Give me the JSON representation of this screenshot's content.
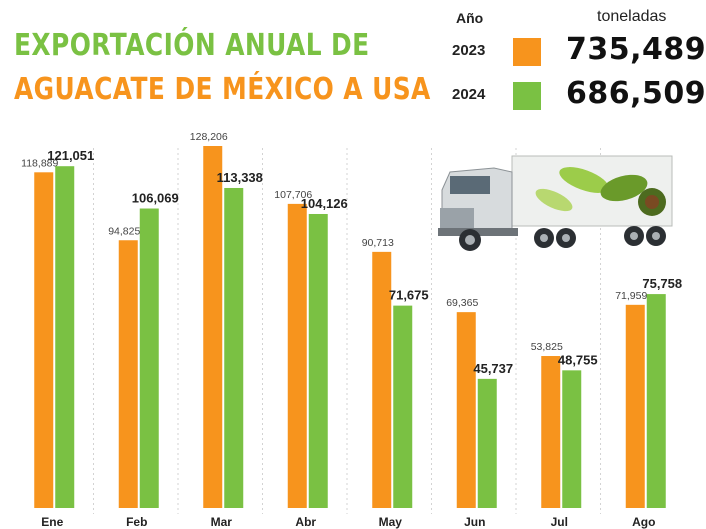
{
  "header": {
    "title_line1": "EXPORTACIÓN ANUAL DE",
    "title_line2": "AGUACATE DE MÉXICO A USA"
  },
  "legend": {
    "year_header": "Año",
    "units_header": "toneladas",
    "items": [
      {
        "year": "2023",
        "total": "735,489",
        "color": "#f7941d"
      },
      {
        "year": "2024",
        "total": "686,509",
        "color": "#7ac143"
      }
    ]
  },
  "chart_data": {
    "type": "bar",
    "title": "EXPORTACIÓN ANUAL DE AGUACATE DE MÉXICO A USA",
    "ylabel": "toneladas",
    "xlabel": "",
    "categories": [
      "Ene",
      "Feb",
      "Mar",
      "Abr",
      "May",
      "Jun",
      "Jul",
      "Ago"
    ],
    "series": [
      {
        "name": "2023",
        "color": "#f7941d",
        "values": [
          118889,
          94825,
          128206,
          107706,
          90713,
          69365,
          53825,
          71959
        ],
        "labels": [
          "118,889",
          "94,825",
          "128,206",
          "107,706",
          "90,713",
          "69,365",
          "53,825",
          "71,959"
        ]
      },
      {
        "name": "2024",
        "color": "#7ac143",
        "values": [
          121051,
          106069,
          113338,
          104126,
          71675,
          45737,
          48755,
          75758
        ],
        "labels": [
          "121,051",
          "106,069",
          "113,338",
          "104,126",
          "71,675",
          "45,737",
          "48,755",
          "75,758"
        ]
      }
    ],
    "ylim": [
      0,
      140000
    ],
    "grid": false
  }
}
